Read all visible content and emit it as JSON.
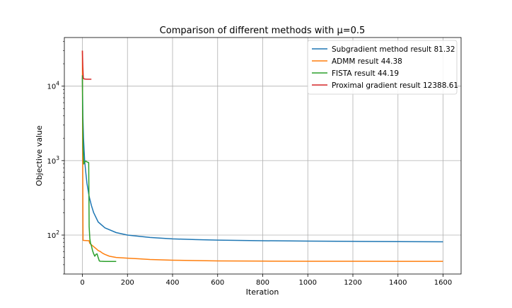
{
  "chart_data": {
    "type": "line",
    "title": "Comparison of different methods with μ=0.5",
    "xlabel": "Iteration",
    "ylabel": "Objective value",
    "xlim": [
      -80,
      1680
    ],
    "ylim": [
      30,
      45000
    ],
    "yscale": "log",
    "grid": true,
    "legend_position": "top-right",
    "x_ticks": [
      0,
      200,
      400,
      600,
      800,
      1000,
      1200,
      1400,
      1600
    ],
    "y_ticks": [
      {
        "value": 100,
        "base": "10",
        "exp": "2"
      },
      {
        "value": 1000,
        "base": "10",
        "exp": "3"
      },
      {
        "value": 10000,
        "base": "10",
        "exp": "4"
      }
    ],
    "series": [
      {
        "name": "Subgradient method result 81.32",
        "color": "#1f77b4",
        "points": [
          [
            0,
            13000
          ],
          [
            2,
            4000
          ],
          [
            5,
            2000
          ],
          [
            10,
            1000
          ],
          [
            15,
            700
          ],
          [
            20,
            500
          ],
          [
            30,
            330
          ],
          [
            40,
            250
          ],
          [
            50,
            200
          ],
          [
            70,
            150
          ],
          [
            100,
            125
          ],
          [
            150,
            108
          ],
          [
            200,
            100
          ],
          [
            300,
            93
          ],
          [
            400,
            89
          ],
          [
            500,
            87
          ],
          [
            600,
            85.5
          ],
          [
            800,
            84
          ],
          [
            1000,
            83
          ],
          [
            1200,
            82.3
          ],
          [
            1400,
            81.8
          ],
          [
            1600,
            81.32
          ]
        ]
      },
      {
        "name": "ADMM result 44.38",
        "color": "#ff7f0e",
        "points": [
          [
            0,
            30000
          ],
          [
            1,
            2000
          ],
          [
            3,
            85
          ],
          [
            30,
            84
          ],
          [
            32,
            78
          ],
          [
            40,
            74
          ],
          [
            50,
            70
          ],
          [
            60,
            66
          ],
          [
            70,
            62
          ],
          [
            80,
            60
          ],
          [
            90,
            57
          ],
          [
            100,
            55
          ],
          [
            120,
            52
          ],
          [
            150,
            50
          ],
          [
            200,
            49
          ],
          [
            250,
            48
          ],
          [
            300,
            47
          ],
          [
            350,
            46.5
          ],
          [
            400,
            46
          ],
          [
            500,
            45.5
          ],
          [
            600,
            45
          ],
          [
            800,
            44.7
          ],
          [
            1000,
            44.5
          ],
          [
            1200,
            44.45
          ],
          [
            1400,
            44.4
          ],
          [
            1600,
            44.38
          ]
        ]
      },
      {
        "name": "FISTA result 44.19",
        "color": "#2ca02c",
        "points": [
          [
            0,
            14000
          ],
          [
            1,
            5000
          ],
          [
            3,
            1500
          ],
          [
            6,
            900
          ],
          [
            10,
            950
          ],
          [
            15,
            990
          ],
          [
            20,
            960
          ],
          [
            28,
            940
          ],
          [
            30,
            130
          ],
          [
            33,
            90
          ],
          [
            36,
            78
          ],
          [
            40,
            72
          ],
          [
            45,
            62
          ],
          [
            50,
            56
          ],
          [
            55,
            52
          ],
          [
            60,
            55
          ],
          [
            65,
            56
          ],
          [
            70,
            50
          ],
          [
            75,
            45
          ],
          [
            80,
            44.5
          ],
          [
            100,
            44.3
          ],
          [
            130,
            44.2
          ],
          [
            150,
            44.19
          ]
        ]
      },
      {
        "name": "Proximal gradient  result 12388.61",
        "color": "#d62728",
        "points": [
          [
            0,
            30000
          ],
          [
            2,
            18000
          ],
          [
            4,
            13000
          ],
          [
            6,
            12600
          ],
          [
            10,
            12450
          ],
          [
            20,
            12400
          ],
          [
            40,
            12388.61
          ]
        ]
      }
    ]
  }
}
